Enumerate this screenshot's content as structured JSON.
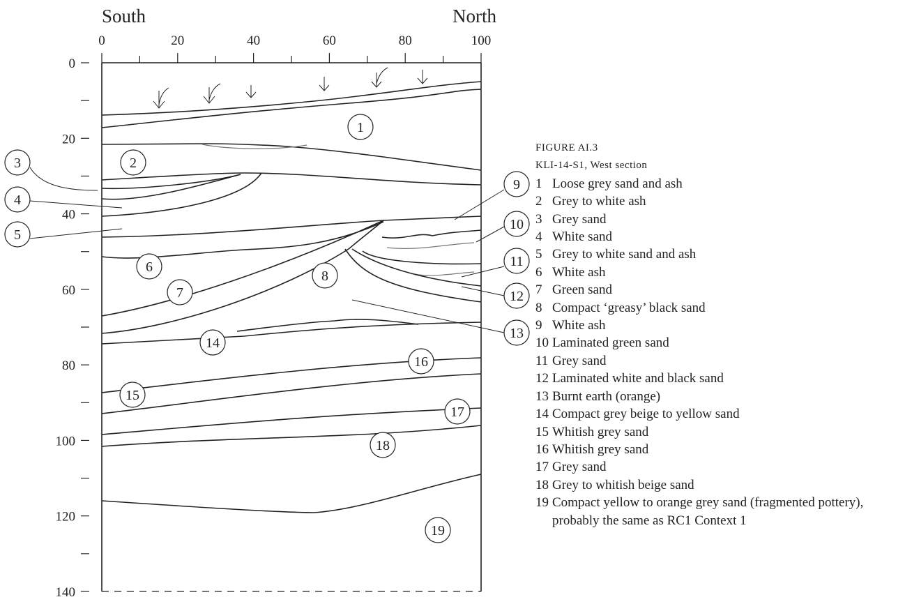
{
  "header": {
    "left": "South",
    "right": "North"
  },
  "x_axis": {
    "ticks": [
      0,
      20,
      40,
      60,
      80,
      100
    ]
  },
  "y_axis": {
    "ticks": [
      0,
      20,
      40,
      60,
      80,
      100,
      120,
      140
    ]
  },
  "layer_labels": [
    "1",
    "2",
    "3",
    "4",
    "5",
    "6",
    "7",
    "8",
    "9",
    "10",
    "11",
    "12",
    "13",
    "14",
    "15",
    "16",
    "17",
    "18",
    "19"
  ],
  "caption": {
    "figure": "FIGURE AI.3",
    "title": "KLI-14-S1, West section"
  },
  "legend": [
    {
      "number": "1",
      "text": "Loose grey sand and ash"
    },
    {
      "number": "2",
      "text": "Grey to white ash"
    },
    {
      "number": "3",
      "text": "Grey sand"
    },
    {
      "number": "4",
      "text": "White sand"
    },
    {
      "number": "5",
      "text": "Grey to white sand and ash"
    },
    {
      "number": "6",
      "text": "White ash"
    },
    {
      "number": "7",
      "text": "Green sand"
    },
    {
      "number": "8",
      "text": "Compact ‘greasy’ black sand"
    },
    {
      "number": "9",
      "text": "White ash"
    },
    {
      "number": "10",
      "text": "Laminated green sand"
    },
    {
      "number": "11",
      "text": "Grey sand"
    },
    {
      "number": "12",
      "text": "Laminated white and black sand"
    },
    {
      "number": "13",
      "text": "Burnt earth (orange)"
    },
    {
      "number": "14",
      "text": "Compact grey beige to yellow sand"
    },
    {
      "number": "15",
      "text": "Whitish grey sand"
    },
    {
      "number": "16",
      "text": "Whitish grey sand"
    },
    {
      "number": "17",
      "text": "Grey sand"
    },
    {
      "number": "18",
      "text": "Grey to whitish beige sand"
    },
    {
      "number": "19",
      "text": "Compact yellow to orange grey sand (fragmented pottery), probably the same as RC1 Context 1"
    }
  ]
}
